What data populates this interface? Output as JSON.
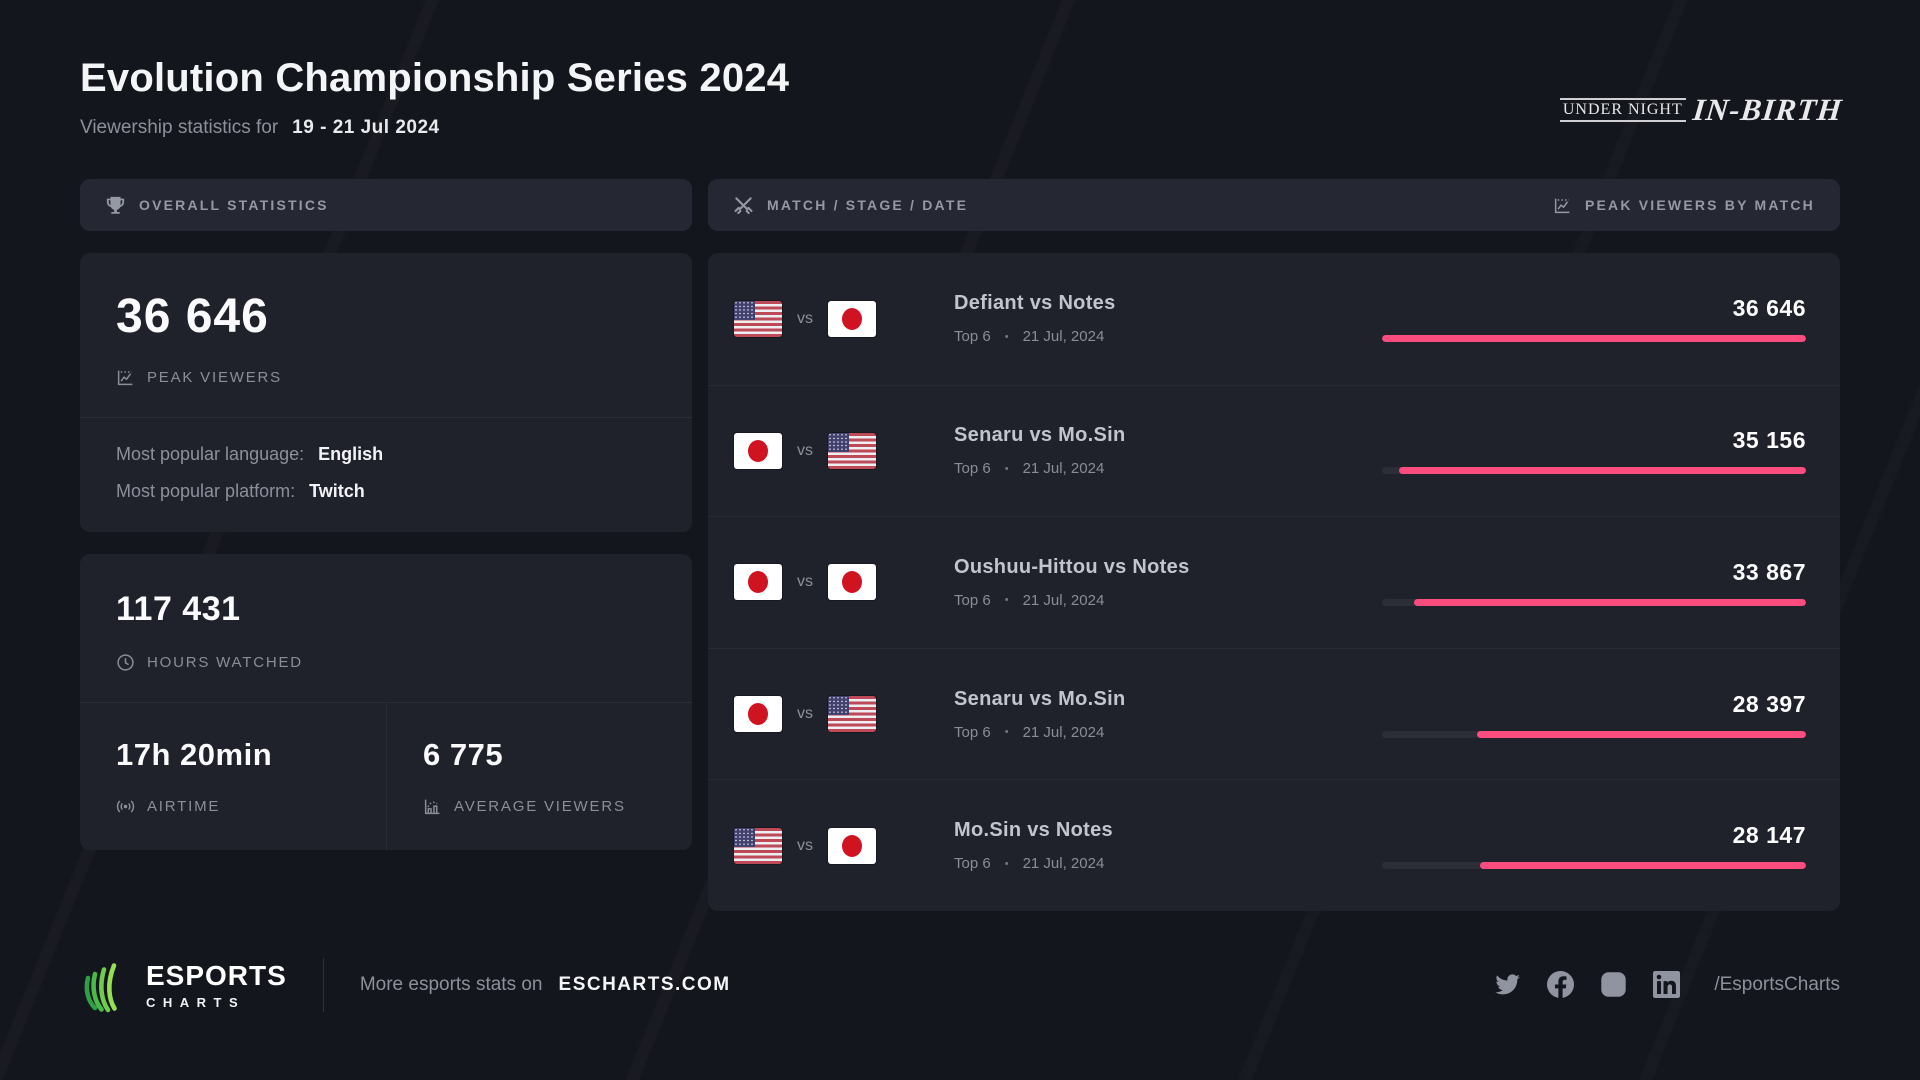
{
  "header": {
    "title": "Evolution Championship Series 2024",
    "subtitle_prefix": "Viewership statistics for",
    "date_range": "19 - 21 Jul 2024",
    "game_logo_top": "UNDER NIGHT",
    "game_logo_main": "IN-BIRTH"
  },
  "overall": {
    "panel_title": "OVERALL STATISTICS",
    "peak_viewers": {
      "value": "36 646",
      "label": "PEAK VIEWERS"
    },
    "language": {
      "label": "Most popular language:",
      "value": "English"
    },
    "platform": {
      "label": "Most popular platform:",
      "value": "Twitch"
    },
    "hours_watched": {
      "value": "117 431",
      "label": "HOURS WATCHED"
    },
    "airtime": {
      "value": "17h 20min",
      "label": "AIRTIME"
    },
    "average_viewers": {
      "value": "6 775",
      "label": "AVERAGE VIEWERS"
    }
  },
  "matches": {
    "panel_title_left": "MATCH / STAGE / DATE",
    "panel_title_right": "PEAK VIEWERS BY MATCH",
    "vs_label": "vs",
    "separator": "•",
    "rows": [
      {
        "flag1": "us",
        "flag2": "jp",
        "title": "Defiant vs Notes",
        "stage": "Top 6",
        "date": "21 Jul, 2024",
        "value": "36 646",
        "pct": 100
      },
      {
        "flag1": "jp",
        "flag2": "us",
        "title": "Senaru vs Mo.Sin",
        "stage": "Top 6",
        "date": "21 Jul, 2024",
        "value": "35 156",
        "pct": 95.9
      },
      {
        "flag1": "jp",
        "flag2": "jp",
        "title": "Oushuu-Hittou vs Notes",
        "stage": "Top 6",
        "date": "21 Jul, 2024",
        "value": "33 867",
        "pct": 92.4
      },
      {
        "flag1": "jp",
        "flag2": "us",
        "title": "Senaru vs Mo.Sin",
        "stage": "Top 6",
        "date": "21 Jul, 2024",
        "value": "28 397",
        "pct": 77.5
      },
      {
        "flag1": "us",
        "flag2": "jp",
        "title": "Mo.Sin vs Notes",
        "stage": "Top 6",
        "date": "21 Jul, 2024",
        "value": "28 147",
        "pct": 76.8
      }
    ]
  },
  "footer": {
    "brand_line1": "ESPORTS",
    "brand_line2": "CHARTS",
    "text_prefix": "More esports stats on",
    "site": "ESCHARTS.COM",
    "handle": "/EsportsCharts",
    "social": [
      "twitter",
      "facebook",
      "instagram",
      "linkedin"
    ]
  },
  "colors": {
    "accent_pink": "#FA4C7F",
    "brand_green": "#4DC24E",
    "background": "#14161D",
    "card": "#1F222B"
  }
}
